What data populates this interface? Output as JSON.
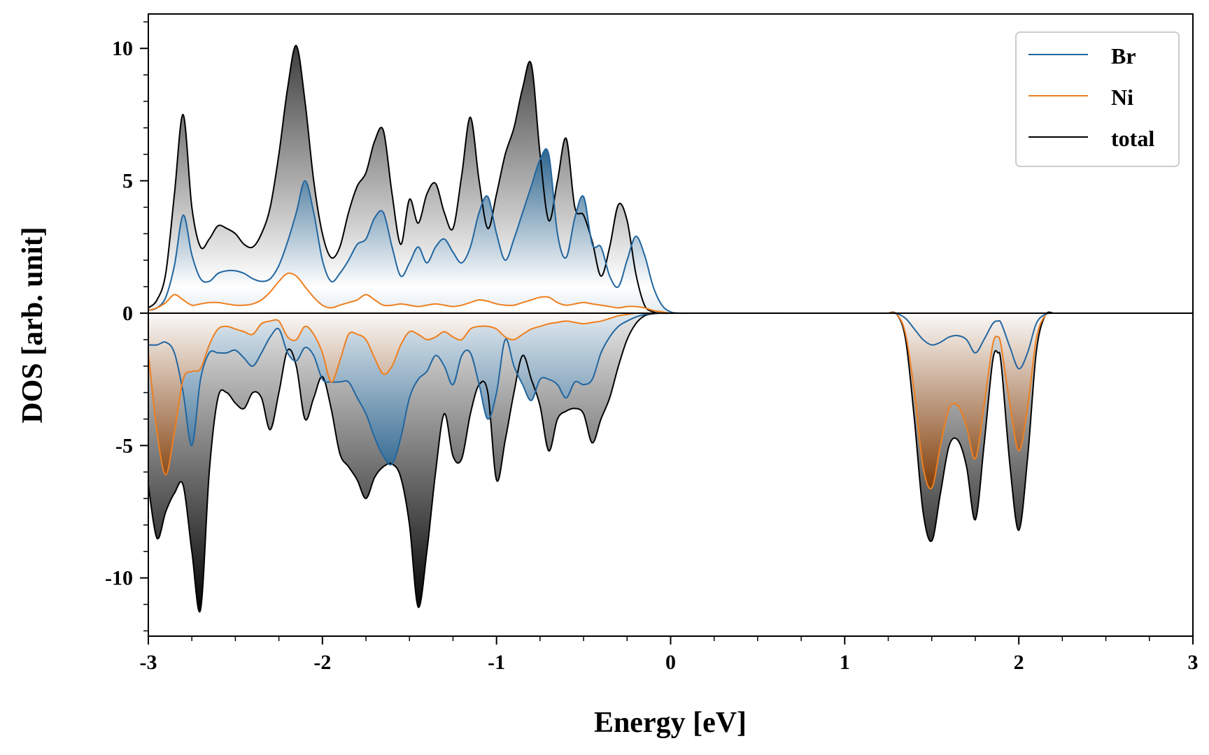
{
  "colors": {
    "br": "#2166a0",
    "ni": "#ee7f1f",
    "total": "#000000",
    "br_fill": "#1f5a86",
    "ni_fill": "#7f3c08",
    "total_fill": "#1a1a1a"
  },
  "chart_data": {
    "type": "area",
    "xlabel": "Energy [eV]",
    "ylabel": "DOS [arb. unit]",
    "xlim": [
      -3,
      3
    ],
    "ylim": [
      -12.2,
      11.3
    ],
    "xticks": [
      -3,
      -2,
      -1,
      0,
      1,
      2,
      3
    ],
    "xtick_labels": [
      "-3",
      "-2",
      "-1",
      "0",
      "1",
      "2",
      "3"
    ],
    "yticks": [
      -10,
      -5,
      0,
      5,
      10
    ],
    "ytick_labels": [
      "-10",
      "-5",
      "0",
      "5",
      "10"
    ],
    "grid": false,
    "legend_position": "top-right",
    "legend": [
      "Br",
      "Ni",
      "total"
    ],
    "x": [
      -3.0,
      -2.95,
      -2.9,
      -2.85,
      -2.8,
      -2.75,
      -2.7,
      -2.65,
      -2.6,
      -2.55,
      -2.5,
      -2.45,
      -2.4,
      -2.35,
      -2.3,
      -2.25,
      -2.2,
      -2.15,
      -2.1,
      -2.05,
      -2.0,
      -1.95,
      -1.9,
      -1.85,
      -1.8,
      -1.75,
      -1.7,
      -1.65,
      -1.6,
      -1.55,
      -1.5,
      -1.45,
      -1.4,
      -1.35,
      -1.3,
      -1.25,
      -1.2,
      -1.15,
      -1.1,
      -1.05,
      -1.0,
      -0.95,
      -0.9,
      -0.85,
      -0.8,
      -0.75,
      -0.7,
      -0.65,
      -0.6,
      -0.55,
      -0.5,
      -0.45,
      -0.4,
      -0.35,
      -0.3,
      -0.25,
      -0.2,
      -0.15,
      -0.1,
      -0.05,
      0.0,
      0.05,
      0.1,
      0.15,
      0.2,
      0.25,
      0.3,
      0.35,
      0.4,
      0.45,
      0.5,
      0.55,
      0.6,
      0.7,
      0.8,
      0.9,
      1.0,
      1.1,
      1.2,
      1.3,
      1.35,
      1.4,
      1.45,
      1.5,
      1.55,
      1.6,
      1.65,
      1.7,
      1.75,
      1.8,
      1.85,
      1.9,
      1.95,
      2.0,
      2.05,
      2.1,
      2.15,
      2.2,
      2.3,
      2.5,
      2.7,
      3.0
    ],
    "series": [
      {
        "name": "Br",
        "up": [
          0.1,
          0.2,
          0.6,
          1.8,
          3.7,
          2.2,
          1.3,
          1.2,
          1.5,
          1.6,
          1.6,
          1.5,
          1.3,
          1.2,
          1.3,
          1.8,
          2.7,
          3.8,
          5.0,
          3.8,
          2.0,
          1.2,
          1.5,
          2.0,
          2.6,
          2.8,
          3.6,
          3.8,
          2.5,
          1.4,
          1.9,
          2.5,
          1.9,
          2.5,
          2.8,
          2.3,
          1.9,
          2.5,
          3.8,
          4.4,
          3.0,
          2.0,
          2.8,
          3.8,
          4.8,
          5.8,
          6.0,
          3.0,
          2.1,
          3.6,
          4.4,
          2.6,
          2.5,
          1.4,
          1.0,
          2.0,
          2.9,
          2.2,
          1.0,
          0.3,
          0.05,
          0,
          0,
          0,
          0,
          0,
          0,
          0,
          0,
          0,
          0,
          0,
          0,
          0,
          0,
          0,
          0,
          0,
          0,
          0,
          0,
          0,
          0,
          0,
          0,
          0,
          0,
          0,
          0,
          0,
          0,
          0,
          0,
          0,
          0,
          0,
          0,
          0
        ],
        "down": [
          -1.2,
          -1.2,
          -1.1,
          -1.5,
          -3.0,
          -5.0,
          -2.5,
          -1.5,
          -1.5,
          -1.5,
          -1.4,
          -1.7,
          -2.0,
          -1.5,
          -0.9,
          -0.6,
          -1.5,
          -1.8,
          -1.3,
          -1.6,
          -2.5,
          -2.6,
          -2.6,
          -2.6,
          -3.2,
          -3.8,
          -4.7,
          -5.4,
          -5.7,
          -4.7,
          -3.2,
          -2.5,
          -2.2,
          -1.6,
          -2.0,
          -2.7,
          -1.6,
          -1.5,
          -2.7,
          -4.0,
          -3.0,
          -1.0,
          -2.0,
          -2.7,
          -3.3,
          -2.5,
          -2.5,
          -2.7,
          -3.2,
          -2.6,
          -2.7,
          -2.5,
          -1.5,
          -0.9,
          -0.5,
          -0.3,
          -0.15,
          -0.05,
          0,
          0,
          0,
          0,
          0,
          0,
          0,
          0,
          0,
          0,
          0,
          0,
          0,
          0,
          0,
          0,
          0,
          0,
          0,
          0,
          0,
          0,
          0,
          0,
          0,
          0,
          0,
          0,
          0,
          0,
          0,
          0,
          0,
          0,
          0,
          0,
          0,
          0,
          0,
          0,
          0,
          0,
          0,
          0,
          0,
          0,
          0,
          0,
          0,
          0
        ]
      },
      {
        "name": "Ni",
        "up": [
          0.1,
          0.2,
          0.4,
          0.7,
          0.5,
          0.3,
          0.35,
          0.4,
          0.4,
          0.35,
          0.3,
          0.3,
          0.35,
          0.5,
          0.8,
          1.2,
          1.5,
          1.4,
          1.0,
          0.6,
          0.3,
          0.2,
          0.3,
          0.4,
          0.5,
          0.7,
          0.5,
          0.3,
          0.3,
          0.35,
          0.3,
          0.25,
          0.3,
          0.35,
          0.3,
          0.25,
          0.3,
          0.4,
          0.5,
          0.45,
          0.35,
          0.3,
          0.3,
          0.4,
          0.5,
          0.6,
          0.6,
          0.4,
          0.3,
          0.35,
          0.4,
          0.35,
          0.3,
          0.25,
          0.2,
          0.25,
          0.25,
          0.2,
          0.1,
          0.05,
          0,
          0,
          0,
          0,
          0,
          0,
          0,
          0,
          0,
          0,
          0,
          0,
          0,
          0,
          0,
          0,
          0,
          0,
          0,
          0,
          0,
          0,
          0,
          0,
          0,
          0,
          0,
          0,
          0,
          0,
          0,
          0,
          0,
          0,
          0,
          0,
          0,
          0,
          0,
          0,
          0,
          0,
          0,
          0,
          0,
          0,
          0,
          0,
          0,
          0,
          0
        ],
        "down": [
          -1.5,
          -4.5,
          -6.1,
          -4.5,
          -2.5,
          -2.2,
          -2.1,
          -1.2,
          -0.6,
          -0.5,
          -0.6,
          -0.7,
          -0.8,
          -0.4,
          -0.3,
          -0.3,
          -0.9,
          -1.0,
          -0.5,
          -0.8,
          -1.5,
          -2.6,
          -1.8,
          -0.8,
          -0.8,
          -1.0,
          -1.7,
          -2.3,
          -2.0,
          -1.2,
          -0.7,
          -0.8,
          -1.0,
          -0.9,
          -0.7,
          -0.9,
          -1.0,
          -0.6,
          -0.5,
          -0.5,
          -0.6,
          -0.9,
          -1.0,
          -0.8,
          -0.6,
          -0.5,
          -0.4,
          -0.35,
          -0.3,
          -0.35,
          -0.4,
          -0.35,
          -0.3,
          -0.2,
          -0.1,
          -0.05,
          0,
          0,
          0,
          0,
          0,
          0,
          0,
          0,
          0,
          0,
          0,
          0,
          0,
          0,
          0,
          0,
          0,
          0,
          0,
          0,
          0,
          0,
          0,
          0,
          0,
          0,
          0,
          0,
          0,
          0,
          0,
          0,
          0,
          0,
          0,
          0,
          0,
          0,
          0,
          0,
          0,
          0,
          0,
          0,
          0,
          0,
          0,
          0,
          0,
          0,
          0,
          0
        ]
      },
      {
        "name": "total",
        "up": [
          0.2,
          0.5,
          1.5,
          4.5,
          7.5,
          4.0,
          2.5,
          2.8,
          3.3,
          3.2,
          3.0,
          2.6,
          2.5,
          3.0,
          4.0,
          6.0,
          8.5,
          10.1,
          8.0,
          5.0,
          3.0,
          2.1,
          2.5,
          3.8,
          4.8,
          5.3,
          6.5,
          6.9,
          4.5,
          2.6,
          4.3,
          3.4,
          4.5,
          4.9,
          3.8,
          3.2,
          5.2,
          7.4,
          5.0,
          3.2,
          4.5,
          6.0,
          7.0,
          8.5,
          9.4,
          6.0,
          3.5,
          5.0,
          6.6,
          4.0,
          3.7,
          2.7,
          1.4,
          2.5,
          4.1,
          3.5,
          1.5,
          0.3,
          0.05,
          0,
          0,
          0,
          0,
          0,
          0,
          0,
          0,
          0,
          0,
          0,
          0,
          0,
          0,
          0,
          0,
          0,
          0,
          0,
          0,
          0,
          0,
          0,
          0,
          0,
          0,
          0,
          0,
          0,
          0,
          0,
          0,
          0,
          0,
          0,
          0,
          0,
          0,
          0,
          0,
          0,
          0,
          0,
          0,
          0,
          0,
          0,
          0,
          0,
          0,
          0,
          0,
          0
        ],
        "down": [
          -6.5,
          -8.5,
          -7.5,
          -6.8,
          -6.5,
          -9.0,
          -11.2,
          -6.0,
          -3.2,
          -3.0,
          -3.4,
          -3.6,
          -3.0,
          -3.2,
          -4.4,
          -3.0,
          -1.4,
          -2.0,
          -4.0,
          -3.2,
          -2.4,
          -3.6,
          -5.3,
          -5.8,
          -6.3,
          -7.0,
          -6.2,
          -5.8,
          -5.7,
          -6.2,
          -8.0,
          -11.1,
          -9.0,
          -6.0,
          -3.8,
          -5.4,
          -5.5,
          -3.8,
          -2.7,
          -3.0,
          -6.3,
          -4.8,
          -3.0,
          -1.6,
          -2.5,
          -3.5,
          -5.2,
          -4.0,
          -3.7,
          -3.6,
          -3.8,
          -4.9,
          -4.0,
          -3.2,
          -2.0,
          -1.0,
          -0.4,
          -0.1,
          -0.02,
          0,
          0,
          0,
          0,
          0,
          0,
          0,
          0,
          0,
          0,
          0,
          0,
          0,
          0,
          0,
          0,
          0,
          0,
          0,
          0,
          0,
          0,
          0,
          0,
          0,
          0,
          0,
          0,
          0,
          0,
          0,
          0,
          0,
          0,
          0,
          0,
          0,
          0,
          0,
          0,
          0,
          0,
          0,
          0,
          0,
          0,
          0,
          0,
          0,
          0,
          0,
          0,
          0
        ]
      }
    ],
    "conduction": [
      {
        "name": "Br",
        "x": [
          1.25,
          1.3,
          1.35,
          1.4,
          1.45,
          1.5,
          1.55,
          1.6,
          1.65,
          1.7,
          1.75,
          1.8,
          1.85,
          1.88,
          1.9,
          1.95,
          2.0,
          2.05,
          2.1,
          2.15,
          2.2
        ],
        "down": [
          0,
          -0.02,
          -0.2,
          -0.6,
          -1.0,
          -1.2,
          -1.1,
          -0.9,
          -0.85,
          -1.0,
          -1.5,
          -1.0,
          -0.4,
          -0.3,
          -0.4,
          -1.3,
          -2.1,
          -1.5,
          -0.4,
          -0.05,
          0
        ]
      },
      {
        "name": "Ni",
        "x": [
          1.25,
          1.3,
          1.35,
          1.4,
          1.45,
          1.5,
          1.55,
          1.6,
          1.65,
          1.7,
          1.75,
          1.8,
          1.85,
          1.88,
          1.9,
          1.95,
          2.0,
          2.05,
          2.1,
          2.15,
          2.2
        ],
        "down": [
          0,
          -0.05,
          -0.8,
          -3.0,
          -5.8,
          -6.6,
          -5.0,
          -3.6,
          -3.5,
          -4.3,
          -5.5,
          -3.5,
          -1.2,
          -0.9,
          -1.3,
          -3.5,
          -5.2,
          -3.6,
          -1.0,
          -0.1,
          0
        ]
      },
      {
        "name": "total",
        "x": [
          1.25,
          1.3,
          1.35,
          1.4,
          1.45,
          1.5,
          1.55,
          1.6,
          1.65,
          1.7,
          1.75,
          1.8,
          1.85,
          1.88,
          1.9,
          1.95,
          2.0,
          2.05,
          2.1,
          2.15,
          2.2
        ],
        "down": [
          0,
          -0.05,
          -1.0,
          -4.0,
          -7.5,
          -8.6,
          -6.8,
          -5.0,
          -4.8,
          -5.8,
          -7.8,
          -5.0,
          -1.8,
          -1.5,
          -2.0,
          -5.8,
          -8.2,
          -5.5,
          -1.5,
          -0.1,
          0
        ]
      }
    ]
  }
}
